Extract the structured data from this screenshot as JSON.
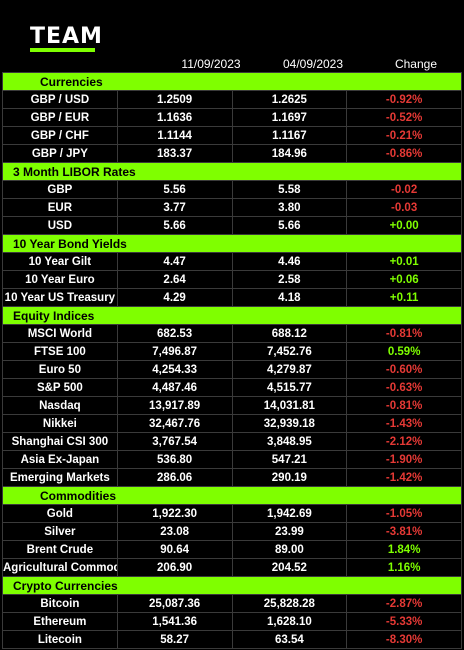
{
  "brand": {
    "logo_text": "TEAM",
    "accent_color": "#7fff00"
  },
  "header": {
    "col1": "11/09/2023",
    "col2": "04/09/2023",
    "col3": "Change"
  },
  "sections": [
    {
      "title": "Currencies",
      "indent": true,
      "rows": [
        {
          "name": "GBP / USD",
          "v1": "1.2509",
          "v2": "1.2625",
          "change": "-0.92%",
          "dir": "neg"
        },
        {
          "name": "GBP / EUR",
          "v1": "1.1636",
          "v2": "1.1697",
          "change": "-0.52%",
          "dir": "neg"
        },
        {
          "name": "GBP / CHF",
          "v1": "1.1144",
          "v2": "1.1167",
          "change": "-0.21%",
          "dir": "neg"
        },
        {
          "name": "GBP / JPY",
          "v1": "183.37",
          "v2": "184.96",
          "change": "-0.86%",
          "dir": "neg"
        }
      ]
    },
    {
      "title": "3 Month LIBOR Rates",
      "indent": false,
      "rows": [
        {
          "name": "GBP",
          "v1": "5.56",
          "v2": "5.58",
          "change": "-0.02",
          "dir": "neg"
        },
        {
          "name": "EUR",
          "v1": "3.77",
          "v2": "3.80",
          "change": "-0.03",
          "dir": "neg"
        },
        {
          "name": "USD",
          "v1": "5.66",
          "v2": "5.66",
          "change": "+0.00",
          "dir": "pos"
        }
      ]
    },
    {
      "title": "10 Year Bond Yields",
      "indent": false,
      "rows": [
        {
          "name": "10 Year Gilt",
          "v1": "4.47",
          "v2": "4.46",
          "change": "+0.01",
          "dir": "pos"
        },
        {
          "name": "10 Year Euro",
          "v1": "2.64",
          "v2": "2.58",
          "change": "+0.06",
          "dir": "pos"
        },
        {
          "name": "10 Year US Treasury",
          "v1": "4.29",
          "v2": "4.18",
          "change": "+0.11",
          "dir": "pos"
        }
      ]
    },
    {
      "title": "Equity Indices",
      "indent": false,
      "rows": [
        {
          "name": "MSCI World",
          "v1": "682.53",
          "v2": "688.12",
          "change": "-0.81%",
          "dir": "neg"
        },
        {
          "name": "FTSE 100",
          "v1": "7,496.87",
          "v2": "7,452.76",
          "change": "0.59%",
          "dir": "pos"
        },
        {
          "name": "Euro 50",
          "v1": "4,254.33",
          "v2": "4,279.87",
          "change": "-0.60%",
          "dir": "neg"
        },
        {
          "name": "S&P 500",
          "v1": "4,487.46",
          "v2": "4,515.77",
          "change": "-0.63%",
          "dir": "neg"
        },
        {
          "name": "Nasdaq",
          "v1": "13,917.89",
          "v2": "14,031.81",
          "change": "-0.81%",
          "dir": "neg"
        },
        {
          "name": "Nikkei",
          "v1": "32,467.76",
          "v2": "32,939.18",
          "change": "-1.43%",
          "dir": "neg"
        },
        {
          "name": "Shanghai CSI 300",
          "v1": "3,767.54",
          "v2": "3,848.95",
          "change": "-2.12%",
          "dir": "neg"
        },
        {
          "name": "Asia Ex-Japan",
          "v1": "536.80",
          "v2": "547.21",
          "change": "-1.90%",
          "dir": "neg"
        },
        {
          "name": "Emerging Markets",
          "v1": "286.06",
          "v2": "290.19",
          "change": "-1.42%",
          "dir": "neg"
        }
      ]
    },
    {
      "title": "Commodities",
      "indent": true,
      "rows": [
        {
          "name": "Gold",
          "v1": "1,922.30",
          "v2": "1,942.69",
          "change": "-1.05%",
          "dir": "neg"
        },
        {
          "name": "Silver",
          "v1": "23.08",
          "v2": "23.99",
          "change": "-3.81%",
          "dir": "neg"
        },
        {
          "name": "Brent Crude",
          "v1": "90.64",
          "v2": "89.00",
          "change": "1.84%",
          "dir": "pos"
        },
        {
          "name": "Agricultural Commods.",
          "v1": "206.90",
          "v2": "204.52",
          "change": "1.16%",
          "dir": "pos"
        }
      ]
    },
    {
      "title": "Crypto Currencies",
      "indent": false,
      "rows": [
        {
          "name": "Bitcoin",
          "v1": "25,087.36",
          "v2": "25,828.28",
          "change": "-2.87%",
          "dir": "neg"
        },
        {
          "name": "Ethereum",
          "v1": "1,541.36",
          "v2": "1,628.10",
          "change": "-5.33%",
          "dir": "neg"
        },
        {
          "name": "Litecoin",
          "v1": "58.27",
          "v2": "63.54",
          "change": "-8.30%",
          "dir": "neg"
        }
      ]
    }
  ]
}
